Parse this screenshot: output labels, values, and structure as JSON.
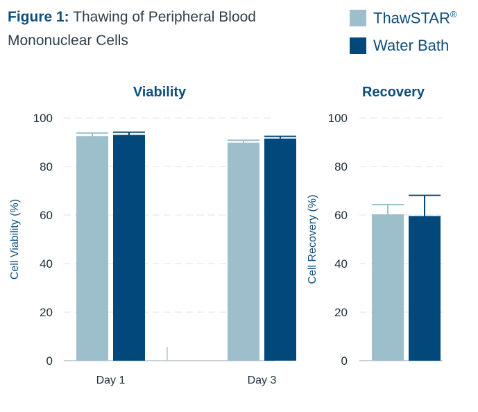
{
  "figure": {
    "label": "Figure 1:",
    "title": "Thawing of Peripheral Blood Mononuclear Cells"
  },
  "legend": [
    {
      "label": "ThawSTAR",
      "mark": "®",
      "color": "#9dbfcc"
    },
    {
      "label": "Water Bath",
      "mark": "",
      "color": "#02487a"
    }
  ],
  "colors": {
    "accent": "#0d4e7c",
    "gridline": "#dde3e7",
    "axis": "#b8c2c9"
  },
  "chart_data": [
    {
      "type": "bar",
      "title": "Viability",
      "ylabel": "Cell Viability (%)",
      "xlabel": "",
      "categories": [
        "Day 1",
        "Day 3"
      ],
      "series": [
        {
          "name": "ThawSTAR",
          "values": [
            92.5,
            89.8
          ],
          "error": [
            1.3,
            1.0
          ]
        },
        {
          "name": "Water Bath",
          "values": [
            93.0,
            91.5
          ],
          "error": [
            1.1,
            0.9
          ]
        }
      ],
      "ylim": [
        0,
        100
      ],
      "yticks": [
        0,
        20,
        40,
        60,
        80,
        100
      ],
      "grid": true,
      "legend": "top-right"
    },
    {
      "type": "bar",
      "title": "Recovery",
      "ylabel": "Cell Recovery (%)",
      "xlabel": "",
      "categories": [
        ""
      ],
      "series": [
        {
          "name": "ThawSTAR",
          "values": [
            60.3
          ],
          "error": [
            4.0
          ]
        },
        {
          "name": "Water Bath",
          "values": [
            59.6
          ],
          "error": [
            8.5
          ]
        }
      ],
      "ylim": [
        0,
        100
      ],
      "yticks": [
        0,
        20,
        40,
        60,
        80,
        100
      ],
      "grid": true,
      "legend": "top-right"
    }
  ]
}
